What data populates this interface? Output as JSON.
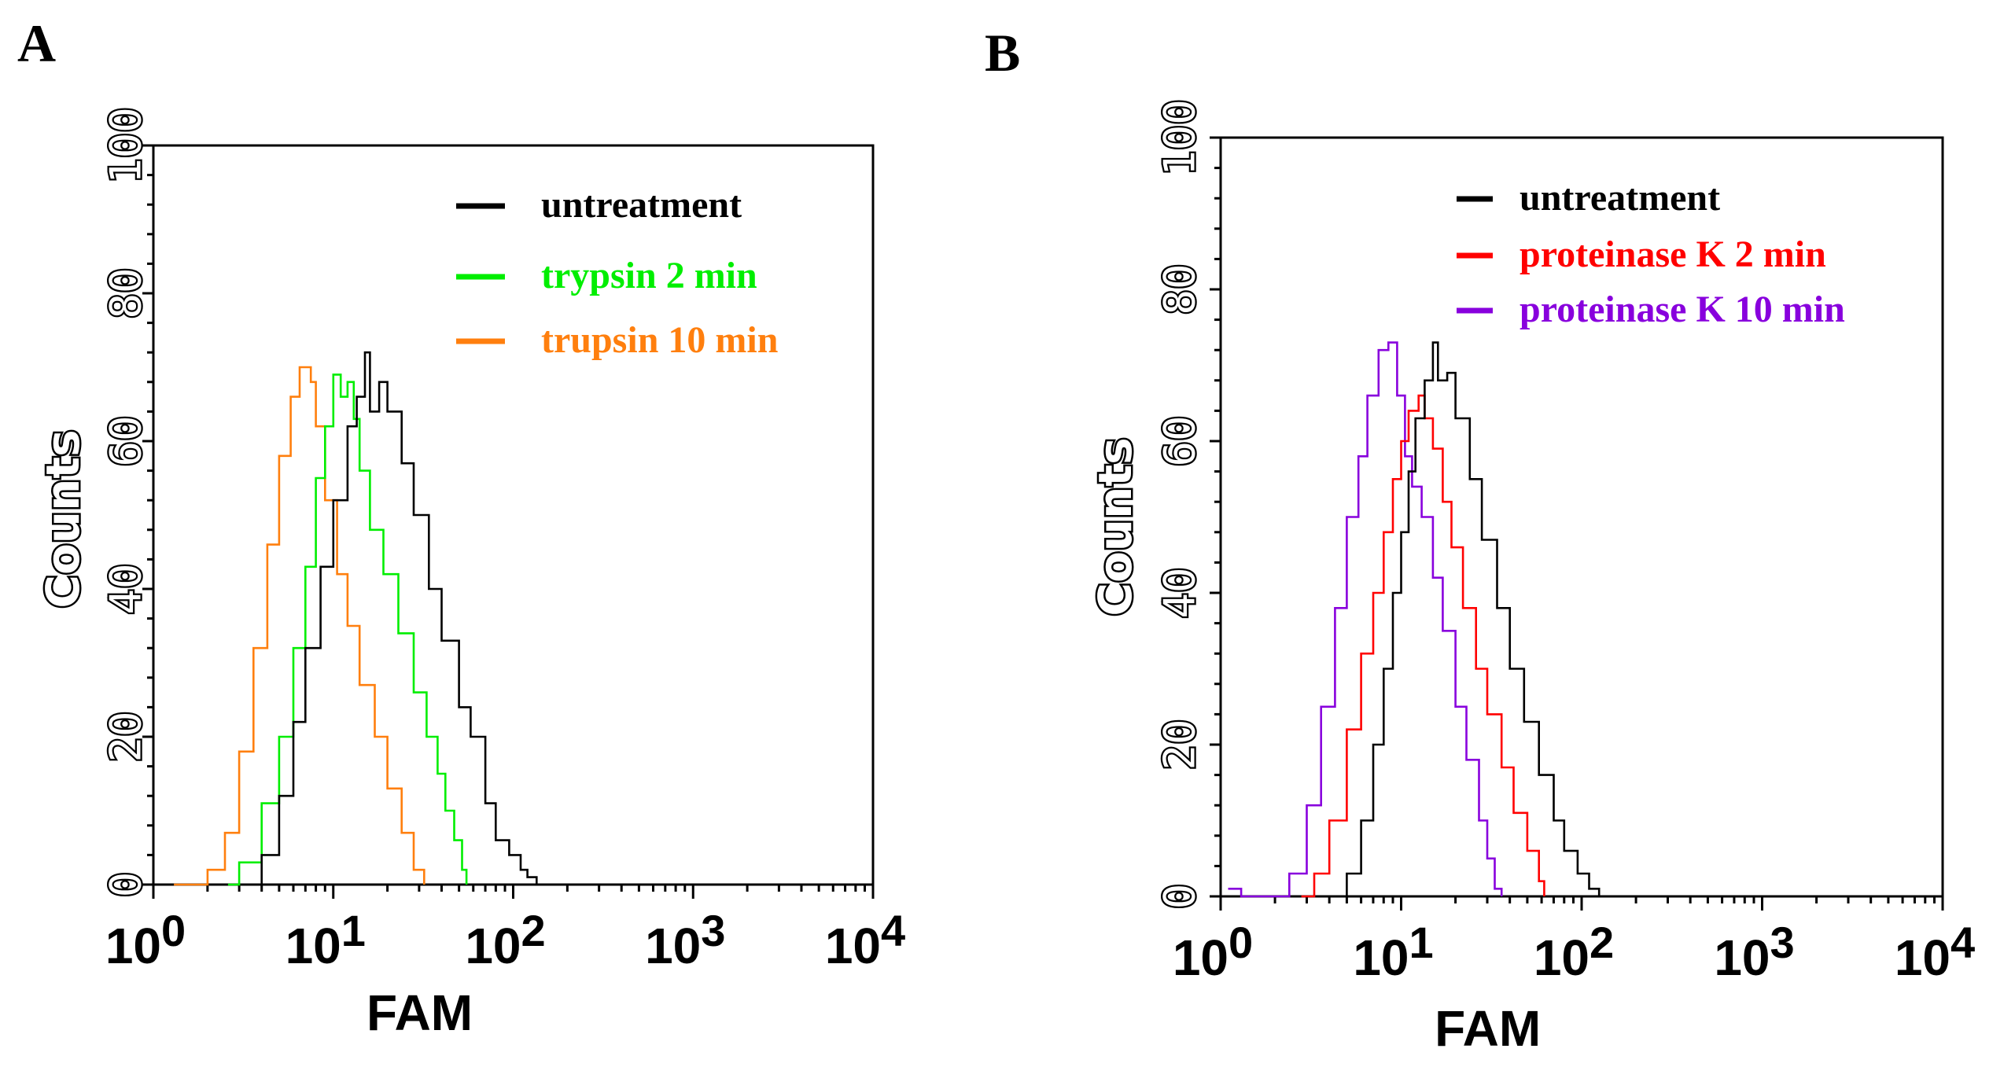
{
  "chart_data": [
    {
      "panel": "A",
      "type": "line",
      "subtype": "flow-cytometry histogram",
      "xlabel": "FAM",
      "ylabel": "Counts",
      "xscale": "log",
      "xlim": [
        1,
        10000
      ],
      "ylim": [
        0,
        100
      ],
      "x_ticks": [
        {
          "base": "10",
          "exp": "0",
          "value": 1
        },
        {
          "base": "10",
          "exp": "1",
          "value": 10
        },
        {
          "base": "10",
          "exp": "2",
          "value": 100
        },
        {
          "base": "10",
          "exp": "3",
          "value": 1000
        },
        {
          "base": "10",
          "exp": "4",
          "value": 10000
        }
      ],
      "y_ticks": [
        "0",
        "20",
        "40",
        "60",
        "80",
        "100"
      ],
      "legend_position": "top-right",
      "series": [
        {
          "name": "untreatment",
          "color": "#000000",
          "points": [
            [
              3.2,
              0
            ],
            [
              4.0,
              4
            ],
            [
              5.0,
              12
            ],
            [
              6.0,
              22
            ],
            [
              7.0,
              32
            ],
            [
              8.5,
              43
            ],
            [
              10.0,
              52
            ],
            [
              12.0,
              62
            ],
            [
              13.5,
              66
            ],
            [
              15.0,
              72
            ],
            [
              16.0,
              64
            ],
            [
              18.0,
              68
            ],
            [
              20.0,
              64
            ],
            [
              24.0,
              57
            ],
            [
              28.0,
              50
            ],
            [
              34.0,
              40
            ],
            [
              40.0,
              33
            ],
            [
              50.0,
              24
            ],
            [
              58.0,
              20
            ],
            [
              70.0,
              11
            ],
            [
              80.0,
              6
            ],
            [
              95.0,
              4
            ],
            [
              110.0,
              2
            ],
            [
              120.0,
              1
            ],
            [
              135.0,
              0
            ]
          ]
        },
        {
          "name": "trypsin 2 min",
          "color": "#00ee00",
          "points": [
            [
              2.6,
              0
            ],
            [
              3.0,
              3
            ],
            [
              4.0,
              11
            ],
            [
              5.0,
              20
            ],
            [
              6.0,
              32
            ],
            [
              7.0,
              43
            ],
            [
              8.0,
              55
            ],
            [
              9.0,
              62
            ],
            [
              10.0,
              69
            ],
            [
              11.0,
              66
            ],
            [
              12.0,
              68
            ],
            [
              13.0,
              63
            ],
            [
              14.0,
              56
            ],
            [
              16.0,
              48
            ],
            [
              19.0,
              42
            ],
            [
              23.0,
              34
            ],
            [
              28.0,
              26
            ],
            [
              33.0,
              20
            ],
            [
              38.0,
              15
            ],
            [
              42.0,
              10
            ],
            [
              47.0,
              6
            ],
            [
              52.0,
              2
            ],
            [
              55.0,
              0
            ]
          ]
        },
        {
          "name": "trupsin 10 min",
          "color": "#ff7f0e",
          "points": [
            [
              1.3,
              0
            ],
            [
              2.0,
              2
            ],
            [
              2.5,
              7
            ],
            [
              3.0,
              18
            ],
            [
              3.6,
              32
            ],
            [
              4.3,
              46
            ],
            [
              5.0,
              58
            ],
            [
              5.8,
              66
            ],
            [
              6.5,
              70
            ],
            [
              7.5,
              68
            ],
            [
              8.0,
              62
            ],
            [
              9.0,
              52
            ],
            [
              10.5,
              42
            ],
            [
              12.0,
              35
            ],
            [
              14.0,
              27
            ],
            [
              17.0,
              20
            ],
            [
              20.0,
              13
            ],
            [
              24.0,
              7
            ],
            [
              28.0,
              2
            ],
            [
              32.0,
              0
            ]
          ]
        }
      ]
    },
    {
      "panel": "B",
      "type": "line",
      "subtype": "flow-cytometry histogram",
      "xlabel": "FAM",
      "ylabel": "Counts",
      "xscale": "log",
      "xlim": [
        1,
        10000
      ],
      "ylim": [
        0,
        100
      ],
      "x_ticks": [
        {
          "base": "10",
          "exp": "0",
          "value": 1
        },
        {
          "base": "10",
          "exp": "1",
          "value": 10
        },
        {
          "base": "10",
          "exp": "2",
          "value": 100
        },
        {
          "base": "10",
          "exp": "3",
          "value": 1000
        },
        {
          "base": "10",
          "exp": "4",
          "value": 10000
        }
      ],
      "y_ticks": [
        "0",
        "20",
        "40",
        "60",
        "80",
        "100"
      ],
      "legend_position": "top-right",
      "series": [
        {
          "name": "untreatment",
          "color": "#000000",
          "points": [
            [
              4.2,
              0
            ],
            [
              5.0,
              3
            ],
            [
              6.0,
              10
            ],
            [
              7.0,
              20
            ],
            [
              8.0,
              30
            ],
            [
              9.0,
              40
            ],
            [
              10.0,
              48
            ],
            [
              11.0,
              56
            ],
            [
              12.0,
              63
            ],
            [
              13.5,
              68
            ],
            [
              15.0,
              73
            ],
            [
              16.0,
              68
            ],
            [
              18.0,
              69
            ],
            [
              20.0,
              63
            ],
            [
              24.0,
              55
            ],
            [
              28.0,
              47
            ],
            [
              34.0,
              38
            ],
            [
              40.0,
              30
            ],
            [
              48.0,
              23
            ],
            [
              58.0,
              16
            ],
            [
              70.0,
              10
            ],
            [
              80.0,
              6
            ],
            [
              95.0,
              3
            ],
            [
              110.0,
              1
            ],
            [
              125.0,
              0
            ]
          ]
        },
        {
          "name": "proteinase K 2 min",
          "color": "#ff0000",
          "points": [
            [
              2.8,
              0
            ],
            [
              3.3,
              3
            ],
            [
              4.0,
              10
            ],
            [
              5.0,
              22
            ],
            [
              6.0,
              32
            ],
            [
              7.0,
              40
            ],
            [
              8.0,
              48
            ],
            [
              9.0,
              55
            ],
            [
              10.0,
              60
            ],
            [
              11.0,
              64
            ],
            [
              12.5,
              66
            ],
            [
              13.5,
              63
            ],
            [
              15.0,
              59
            ],
            [
              17.0,
              52
            ],
            [
              19.0,
              46
            ],
            [
              22.0,
              38
            ],
            [
              26.0,
              30
            ],
            [
              30.0,
              24
            ],
            [
              36.0,
              17
            ],
            [
              42.0,
              11
            ],
            [
              50.0,
              6
            ],
            [
              58.0,
              2
            ],
            [
              62.0,
              0
            ]
          ]
        },
        {
          "name": "proteinase K 10 min",
          "color": "#8800dd",
          "points": [
            [
              1.1,
              1
            ],
            [
              1.3,
              0
            ],
            [
              2.0,
              0
            ],
            [
              2.4,
              3
            ],
            [
              3.0,
              12
            ],
            [
              3.6,
              25
            ],
            [
              4.3,
              38
            ],
            [
              5.0,
              50
            ],
            [
              5.8,
              58
            ],
            [
              6.5,
              66
            ],
            [
              7.5,
              72
            ],
            [
              8.5,
              73
            ],
            [
              9.5,
              66
            ],
            [
              10.5,
              58
            ],
            [
              11.5,
              54
            ],
            [
              13.0,
              50
            ],
            [
              15.0,
              42
            ],
            [
              17.0,
              35
            ],
            [
              20.0,
              25
            ],
            [
              23.0,
              18
            ],
            [
              27.0,
              10
            ],
            [
              30.0,
              5
            ],
            [
              33.0,
              1
            ],
            [
              36.0,
              0
            ]
          ]
        }
      ]
    }
  ]
}
